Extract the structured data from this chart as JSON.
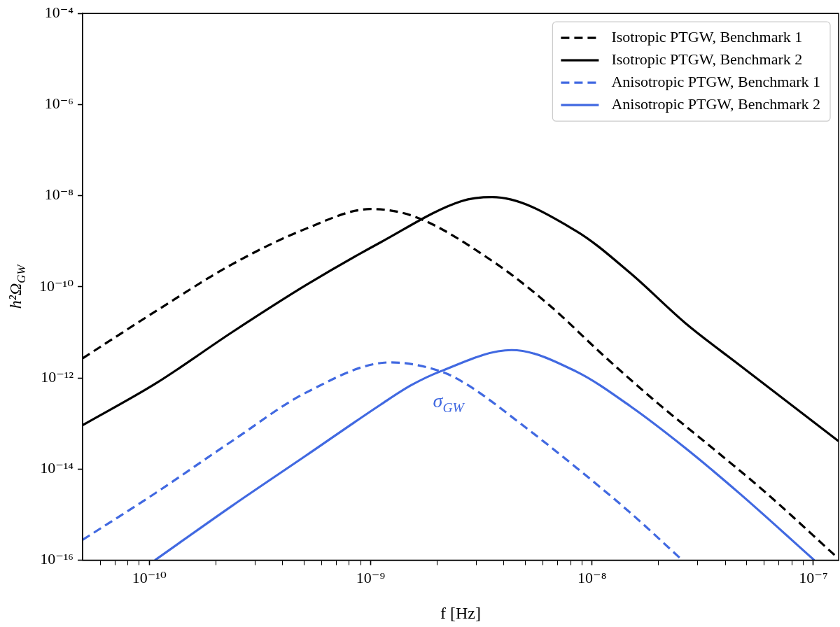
{
  "chart_data": {
    "type": "line",
    "xlabel": "f [Hz]",
    "ylabel": "h²Ω$_{GW}$",
    "log": "xy",
    "grid": false,
    "legend": "top right",
    "marker": "none",
    "xlim": [
      5e-11,
      1.3e-07
    ],
    "ylim": [
      1e-16,
      0.0001
    ],
    "xticks": [
      {
        "value": 6e-11,
        "label": null
      },
      {
        "value": 7e-11,
        "label": null
      },
      {
        "value": 8e-11,
        "label": null
      },
      {
        "value": 9e-11,
        "label": null
      },
      {
        "value": 1e-10,
        "label": "10⁻¹⁰"
      },
      {
        "value": 2e-10,
        "label": null
      },
      {
        "value": 3e-10,
        "label": null
      },
      {
        "value": 4e-10,
        "label": null
      },
      {
        "value": 5e-10,
        "label": null
      },
      {
        "value": 6e-10,
        "label": null
      },
      {
        "value": 7e-10,
        "label": null
      },
      {
        "value": 8e-10,
        "label": null
      },
      {
        "value": 9e-10,
        "label": null
      },
      {
        "value": 1e-09,
        "label": "10⁻⁹"
      },
      {
        "value": 2e-09,
        "label": null
      },
      {
        "value": 3e-09,
        "label": null
      },
      {
        "value": 4e-09,
        "label": null
      },
      {
        "value": 5e-09,
        "label": null
      },
      {
        "value": 6e-09,
        "label": null
      },
      {
        "value": 7e-09,
        "label": null
      },
      {
        "value": 8e-09,
        "label": null
      },
      {
        "value": 9e-09,
        "label": null
      },
      {
        "value": 1e-08,
        "label": "10⁻⁸"
      },
      {
        "value": 2e-08,
        "label": null
      },
      {
        "value": 3e-08,
        "label": null
      },
      {
        "value": 4e-08,
        "label": null
      },
      {
        "value": 5e-08,
        "label": null
      },
      {
        "value": 6e-08,
        "label": null
      },
      {
        "value": 7e-08,
        "label": null
      },
      {
        "value": 8e-08,
        "label": null
      },
      {
        "value": 9e-08,
        "label": null
      },
      {
        "value": 1e-07,
        "label": "10⁻⁷"
      }
    ],
    "yticks": [
      {
        "value": 1e-16,
        "label": "10⁻¹⁶"
      },
      {
        "value": 1e-14,
        "label": "10⁻¹⁴"
      },
      {
        "value": 1e-12,
        "label": "10⁻¹²"
      },
      {
        "value": 1e-10,
        "label": "10⁻¹⁰"
      },
      {
        "value": 1e-08,
        "label": "10⁻⁸"
      },
      {
        "value": 1e-06,
        "label": "10⁻⁶"
      },
      {
        "value": 0.0001,
        "label": "10⁻⁴"
      }
    ],
    "annotations": [
      "σ$_{GW}$"
    ],
    "series": [
      {
        "name": "Isotropic PTGW, Benchmark 1",
        "color": "#000000",
        "line_style": "dashed",
        "x": [
          5e-11,
          1.08e-10,
          2.36e-10,
          5.12e-10,
          1e-09,
          1.6e-09,
          3.6e-09,
          6.33e-09,
          1.12e-08,
          1.98e-08,
          3.5e-08,
          6.17e-08,
          1.26e-07
        ],
        "values": [
          2.7e-12,
          3e-11,
          3.1e-10,
          1.9e-09,
          5.1e-09,
          3.4e-09,
          3.5e-10,
          4.2e-11,
          3.2e-12,
          2.8e-13,
          2.9e-14,
          2.9e-15,
          1.24e-16
        ]
      },
      {
        "name": "Isotropic PTGW, Benchmark 2",
        "color": "#000000",
        "line_style": "solid",
        "x": [
          5e-11,
          1.08e-10,
          2.36e-10,
          5.12e-10,
          1.11e-09,
          2.57e-09,
          3.54e-09,
          8.45e-09,
          1.49e-08,
          2.64e-08,
          4.65e-08,
          1.3e-07
        ],
        "values": [
          9.2e-14,
          7.8e-13,
          1e-11,
          1.1e-10,
          9.5e-10,
          7.6e-09,
          9.3e-09,
          1.7e-09,
          2e-10,
          1.6e-11,
          1.9e-12,
          4.1e-14
        ]
      },
      {
        "name": "Anisotropic PTGW, Benchmark 1",
        "color": "#4169e1",
        "line_style": "dashed",
        "x": [
          5e-11,
          1.08e-10,
          2.36e-10,
          5.12e-10,
          1.23e-09,
          2.07e-09,
          2.71e-09,
          4.78e-09,
          8.45e-09,
          1.49e-08,
          2.56e-08
        ],
        "values": [
          2.8e-16,
          3.1e-15,
          4.1e-14,
          4.8e-13,
          2.2e-12,
          1.4e-12,
          7.3e-13,
          9.8e-14,
          1.1e-14,
          1.1e-15,
          1e-16
        ]
      },
      {
        "name": "Anisotropic PTGW, Benchmark 2",
        "color": "#4169e1",
        "line_style": "solid",
        "x": [
          1.06e-10,
          2.36e-10,
          5.12e-10,
          1.11e-09,
          1.53e-09,
          2.07e-09,
          4.33e-09,
          8.45e-09,
          1.49e-08,
          2.64e-08,
          4.65e-08,
          1.01e-07
        ],
        "values": [
          1e-16,
          1.55e-15,
          2e-14,
          2.6e-13,
          7e-13,
          1.4e-12,
          4.1e-12,
          1.4e-12,
          2.4e-13,
          2.9e-14,
          2.9e-15,
          1e-16
        ]
      }
    ]
  }
}
